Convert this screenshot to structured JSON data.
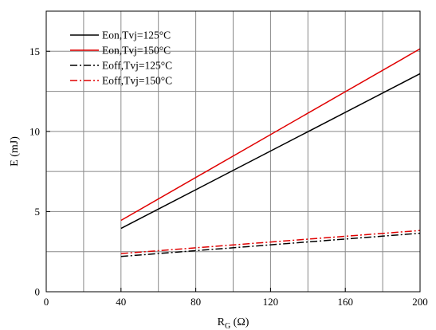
{
  "chart_data": {
    "type": "line",
    "title": "",
    "xlabel": {
      "main": "R",
      "sub": "G",
      "unit": "(Ω)"
    },
    "ylabel": "E (mJ)",
    "xlim": [
      0,
      200
    ],
    "ylim": [
      0,
      17.5
    ],
    "xticks": [
      0,
      40,
      80,
      120,
      160,
      200
    ],
    "yticks": [
      0,
      5,
      10,
      15
    ],
    "grid": true,
    "legend_position": "top-left",
    "series": [
      {
        "name": "Eon,Tvj=125°C",
        "color": "#000000",
        "dash": "solid",
        "x": [
          40,
          200
        ],
        "y": [
          3.95,
          13.6
        ]
      },
      {
        "name": "Eon,Tvj=150°C",
        "color": "#e00000",
        "dash": "solid",
        "x": [
          40,
          200
        ],
        "y": [
          4.45,
          15.15
        ]
      },
      {
        "name": "Eoff,Tvj=125°C",
        "color": "#000000",
        "dash": "dashdot",
        "x": [
          40,
          200
        ],
        "y": [
          2.2,
          3.65
        ]
      },
      {
        "name": "Eoff,Tvj=150°C",
        "color": "#e00000",
        "dash": "dashdot",
        "x": [
          40,
          200
        ],
        "y": [
          2.38,
          3.82
        ]
      }
    ]
  }
}
